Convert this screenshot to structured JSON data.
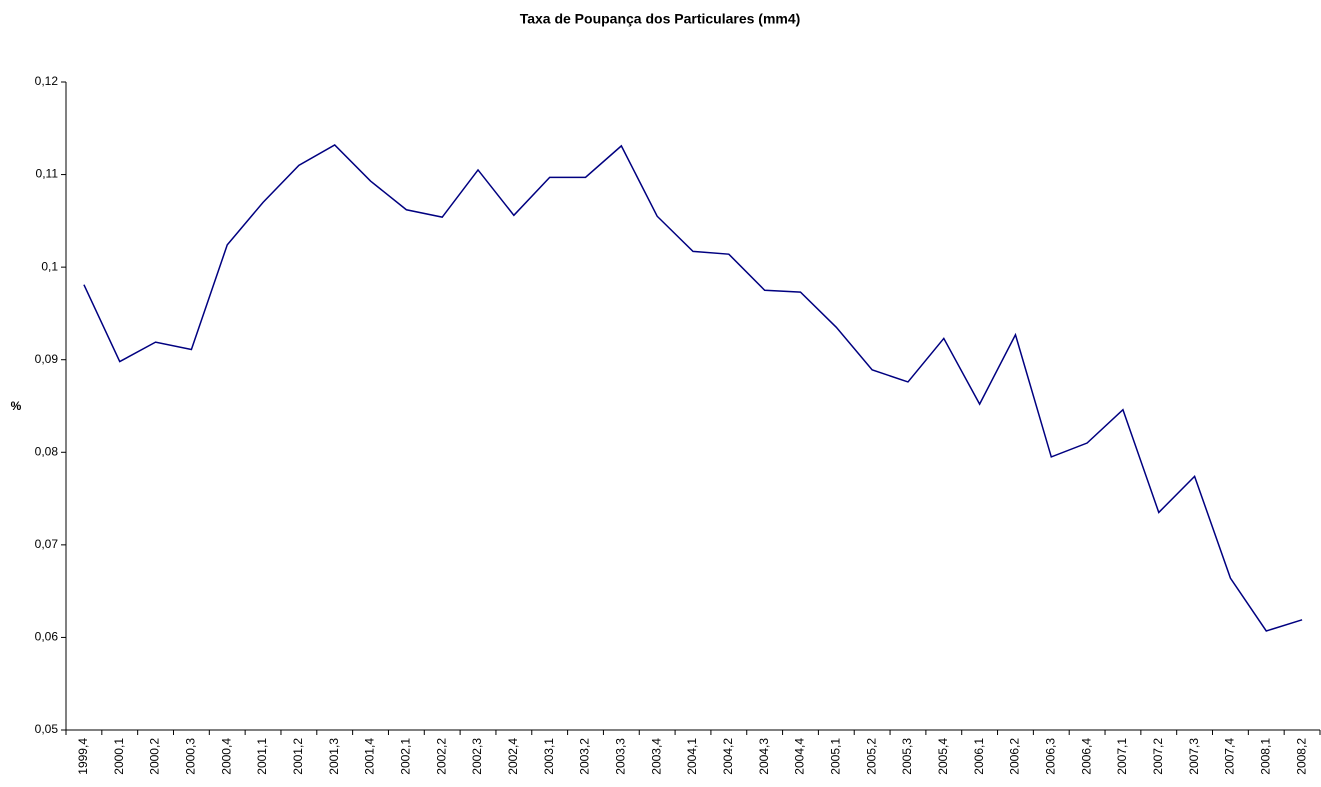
{
  "chart_data": {
    "type": "line",
    "title": "Taxa de Poupança dos Particulares (mm4)",
    "y_label": "%",
    "categories": [
      "1999,4",
      "2000,1",
      "2000,2",
      "2000,3",
      "2000,4",
      "2001,1",
      "2001,2",
      "2001,3",
      "2001,4",
      "2002,1",
      "2002,2",
      "2002,3",
      "2002,4",
      "2003,1",
      "2003,2",
      "2003,3",
      "2003,4",
      "2004,1",
      "2004,2",
      "2004,3",
      "2004,4",
      "2005,1",
      "2005,2",
      "2005,3",
      "2005,4",
      "2006,1",
      "2006,2",
      "2006,3",
      "2006,4",
      "2007,1",
      "2007,2",
      "2007,3",
      "2007,4",
      "2008,1",
      "2008,2"
    ],
    "values": [
      0.0981,
      0.0898,
      0.0919,
      0.0911,
      0.1024,
      0.107,
      0.111,
      0.1132,
      0.1093,
      0.1062,
      0.1054,
      0.1105,
      0.1056,
      0.1097,
      0.1097,
      0.1131,
      0.1055,
      0.1017,
      0.1014,
      0.0975,
      0.0973,
      0.0935,
      0.0889,
      0.0876,
      0.0923,
      0.0852,
      0.0927,
      0.0795,
      0.081,
      0.0846,
      0.0735,
      0.0774,
      0.0664,
      0.0607,
      0.0619
    ],
    "color": "#000080",
    "ylim": [
      0.05,
      0.12
    ],
    "yticks": [
      {
        "value": 0.05,
        "label": "0,05"
      },
      {
        "value": 0.06,
        "label": "0,06"
      },
      {
        "value": 0.07,
        "label": "0,07"
      },
      {
        "value": 0.08,
        "label": "0,08"
      },
      {
        "value": 0.09,
        "label": "0,09"
      },
      {
        "value": 0.1,
        "label": "0,1"
      },
      {
        "value": 0.11,
        "label": "0,11"
      },
      {
        "value": 0.12,
        "label": "0,12"
      }
    ],
    "grid": false
  }
}
